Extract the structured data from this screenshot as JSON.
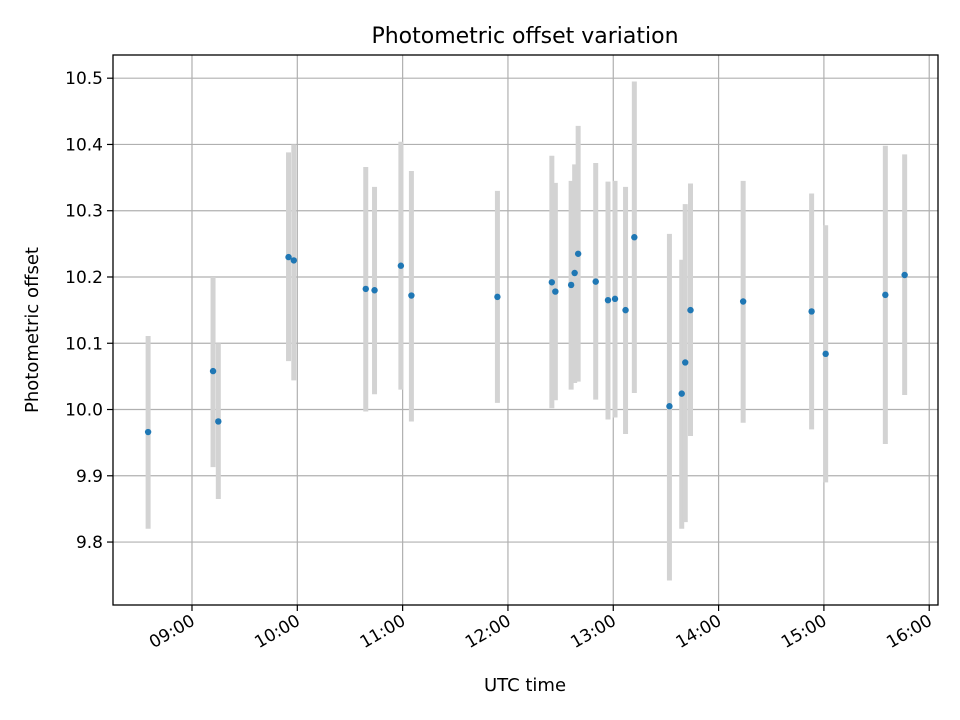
{
  "chart_data": {
    "type": "scatter",
    "title": "Photometric offset variation",
    "xlabel": "UTC time",
    "ylabel": "Photometric offset",
    "grid": true,
    "xlim": [
      "08:15",
      "16:05"
    ],
    "ylim": [
      9.705,
      10.535
    ],
    "x_ticks": [
      "09:00",
      "10:00",
      "11:00",
      "12:00",
      "13:00",
      "14:00",
      "15:00",
      "16:00"
    ],
    "y_ticks": [
      "9.8",
      "9.9",
      "10.0",
      "10.1",
      "10.2",
      "10.3",
      "10.4",
      "10.5"
    ],
    "point_color": "#1f77b4",
    "errorbar_color": "#d3d3d3",
    "series": [
      {
        "x": [
          "08:35",
          "09:12",
          "09:15",
          "09:55",
          "09:58",
          "10:39",
          "10:44",
          "10:59",
          "11:05",
          "11:54",
          "12:25",
          "12:27",
          "12:36",
          "12:38",
          "12:40",
          "12:50",
          "12:57",
          "13:01",
          "13:07",
          "13:12",
          "13:32",
          "13:39",
          "13:41",
          "13:44",
          "14:14",
          "14:53",
          "15:01",
          "15:35",
          "15:46"
        ],
        "y": [
          9.966,
          10.058,
          9.982,
          10.23,
          10.225,
          10.182,
          10.18,
          10.217,
          10.172,
          10.17,
          10.192,
          10.178,
          10.188,
          10.206,
          10.235,
          10.193,
          10.165,
          10.167,
          10.15,
          10.26,
          10.005,
          10.024,
          10.071,
          10.15,
          10.163,
          10.148,
          10.084,
          10.173,
          10.203
        ],
        "yerr_low": [
          9.82,
          9.913,
          9.865,
          10.073,
          10.044,
          9.997,
          10.023,
          10.03,
          9.982,
          10.01,
          10.002,
          10.014,
          10.03,
          10.04,
          10.042,
          10.015,
          9.985,
          9.988,
          9.963,
          10.025,
          9.742,
          9.82,
          9.83,
          9.96,
          9.98,
          9.97,
          9.89,
          9.948,
          10.022
        ],
        "yerr_high": [
          10.111,
          10.2,
          10.1,
          10.388,
          10.4,
          10.366,
          10.336,
          10.404,
          10.36,
          10.33,
          10.383,
          10.342,
          10.345,
          10.37,
          10.428,
          10.372,
          10.344,
          10.345,
          10.336,
          10.495,
          10.265,
          10.226,
          10.31,
          10.341,
          10.345,
          10.326,
          10.278,
          10.398,
          10.385
        ]
      }
    ]
  }
}
